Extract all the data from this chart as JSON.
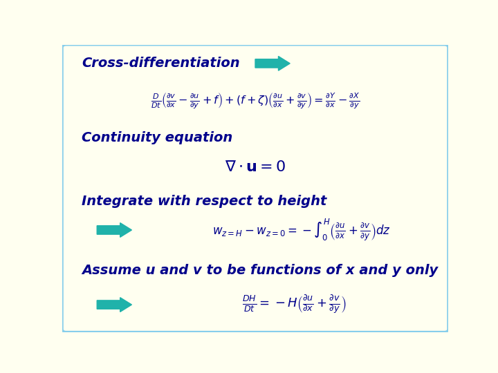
{
  "background_color": "#fffff0",
  "border_color": "#87CEEB",
  "text_color": "#00008B",
  "arrow_color": "#20B2AA",
  "section1_label": "Cross-differentiation",
  "section2_label": "Continuity equation",
  "section3_label": "Integrate with respect to height",
  "section4_label": "Assume u and v to be functions of x and y only",
  "label_fontsize": 14,
  "eq_fontsize": 13
}
